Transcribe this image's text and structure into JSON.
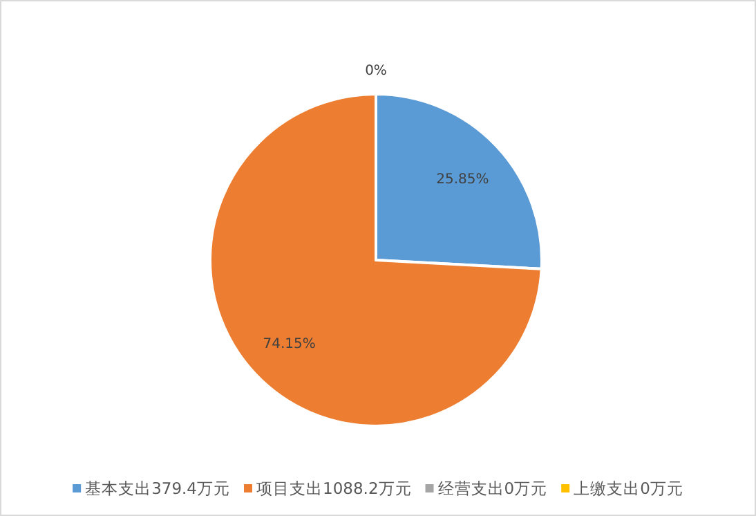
{
  "chart_data": {
    "type": "pie",
    "categories": [
      "基本支出379.4万元",
      "项目支出1088.2万元",
      "经营支出0万元",
      "上缴支出0万元"
    ],
    "values": [
      25.85,
      74.15,
      0,
      0
    ],
    "colors": [
      "#5b9bd5",
      "#ed7d31",
      "#a5a5a5",
      "#ffc000"
    ],
    "value_labels": [
      "25.85%",
      "74.15%",
      "0%",
      null
    ],
    "legend": "bottom"
  }
}
